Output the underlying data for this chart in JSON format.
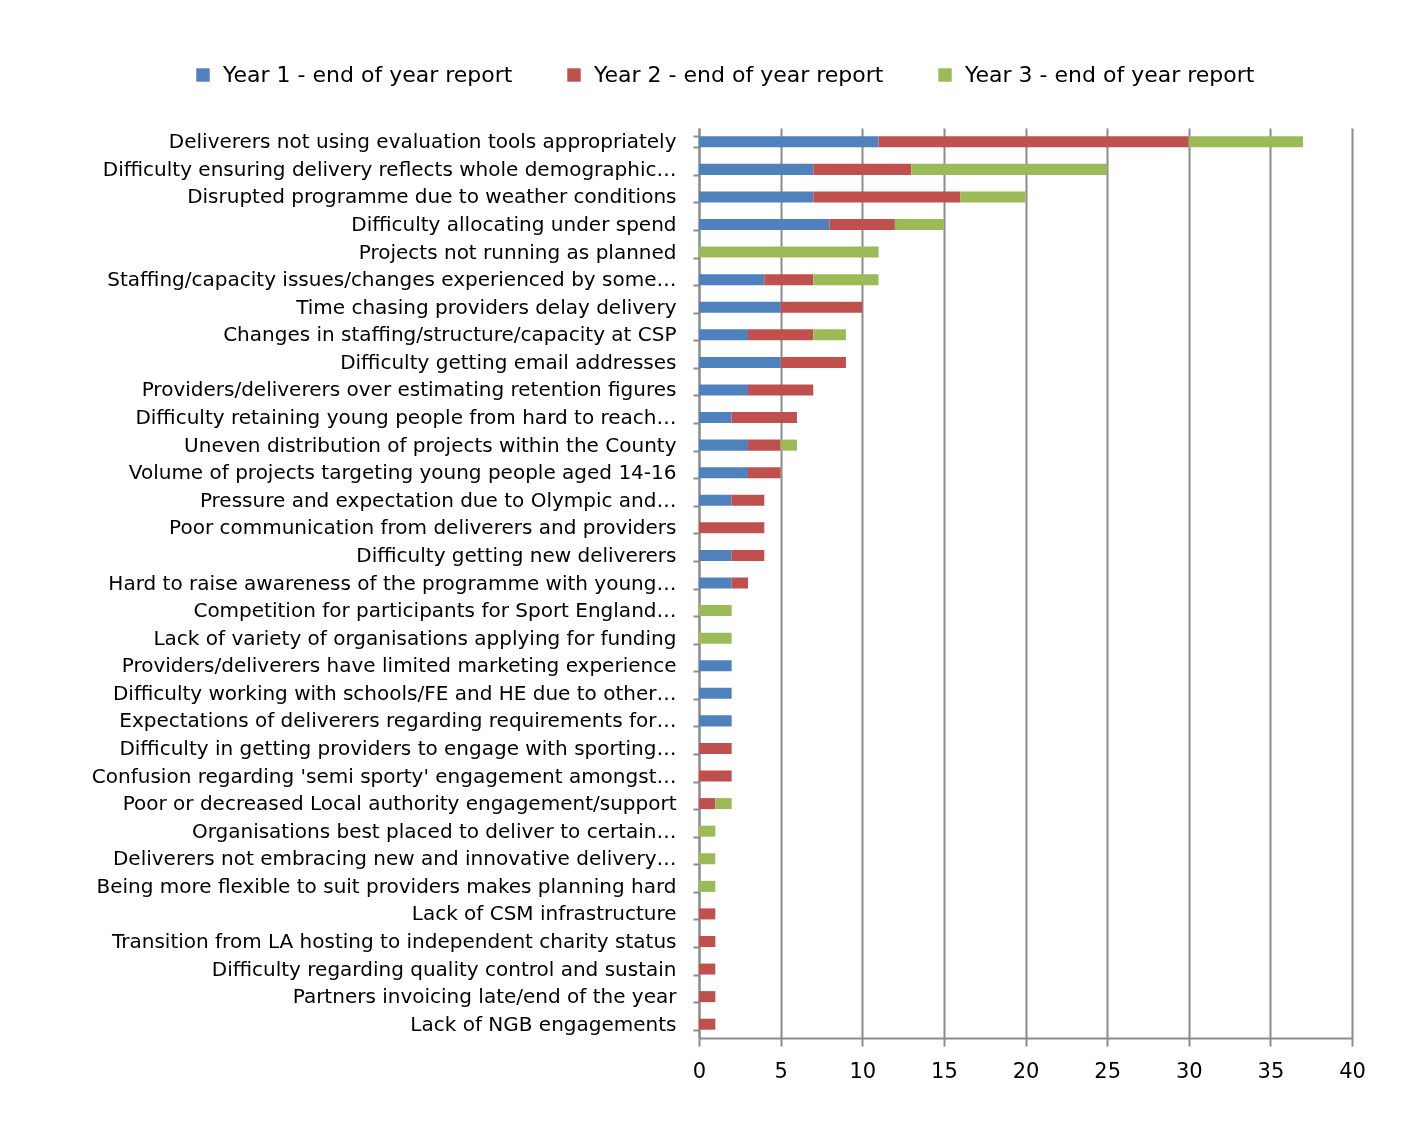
{
  "chart_data": {
    "type": "bar",
    "orientation": "horizontal",
    "stacked": true,
    "categories": [
      "Deliverers not using evaluation tools appropriately",
      "Difficulty ensuring delivery reflects whole demographic…",
      "Disrupted programme due to weather conditions",
      "Difficulty allocating under spend",
      "Projects not running as planned",
      "Staffing/capacity issues/changes experienced by some…",
      "Time chasing providers delay delivery",
      "Changes in staffing/structure/capacity at CSP",
      "Difficulty getting email addresses",
      "Providers/deliverers over estimating retention figures",
      "Difficulty retaining young people from hard to reach…",
      "Uneven distribution of projects within the County",
      "Volume of projects targeting young people aged 14-16",
      "Pressure and expectation due to Olympic and…",
      "Poor communication from deliverers and providers",
      "Difficulty getting new deliverers",
      "Hard to raise awareness of the programme with young…",
      "Competition for participants for Sport England…",
      "Lack of variety of organisations applying for funding",
      "Providers/deliverers have limited marketing experience",
      "Difficulty working with schools/FE and HE due to other…",
      "Expectations of deliverers regarding requirements for…",
      "Difficulty in getting providers to engage with sporting…",
      "Confusion regarding 'semi sporty' engagement amongst…",
      "Poor or decreased Local authority engagement/support",
      "Organisations best placed to deliver to certain…",
      "Deliverers not embracing new and innovative delivery…",
      "Being more flexible to suit providers makes planning hard",
      "Lack of CSM infrastructure",
      "Transition from LA hosting to independent charity status",
      "Difficulty regarding quality control and sustain",
      "Partners invoicing late/end of the year",
      "Lack of NGB engagements"
    ],
    "series": [
      {
        "name": "Year 1 - end of year report",
        "color": "#4f81bd",
        "values": [
          11,
          7,
          7,
          8,
          null,
          4,
          5,
          3,
          5,
          3,
          2,
          3,
          3,
          2,
          null,
          2,
          2,
          null,
          null,
          2,
          2,
          2,
          null,
          null,
          null,
          null,
          null,
          null,
          null,
          null,
          null,
          null,
          null
        ]
      },
      {
        "name": "Year 2 - end of year report",
        "color": "#c0504d",
        "values": [
          19,
          6,
          9,
          4,
          null,
          3,
          5,
          4,
          4,
          4,
          4,
          2,
          2,
          2,
          4,
          2,
          1,
          null,
          null,
          null,
          null,
          null,
          2,
          2,
          1,
          null,
          null,
          null,
          1,
          1,
          1,
          1,
          1
        ]
      },
      {
        "name": "Year 3 - end of year report",
        "color": "#9bbb59",
        "values": [
          7,
          12,
          4,
          3,
          11,
          4,
          null,
          2,
          null,
          null,
          null,
          1,
          null,
          null,
          null,
          null,
          null,
          2,
          2,
          null,
          null,
          null,
          null,
          null,
          1,
          1,
          1,
          1,
          null,
          null,
          null,
          null,
          null
        ]
      }
    ],
    "xlim": [
      0,
      40
    ],
    "xticks": [
      0,
      5,
      10,
      15,
      20,
      25,
      30,
      35,
      40
    ],
    "grid": "x",
    "legend": "top"
  }
}
